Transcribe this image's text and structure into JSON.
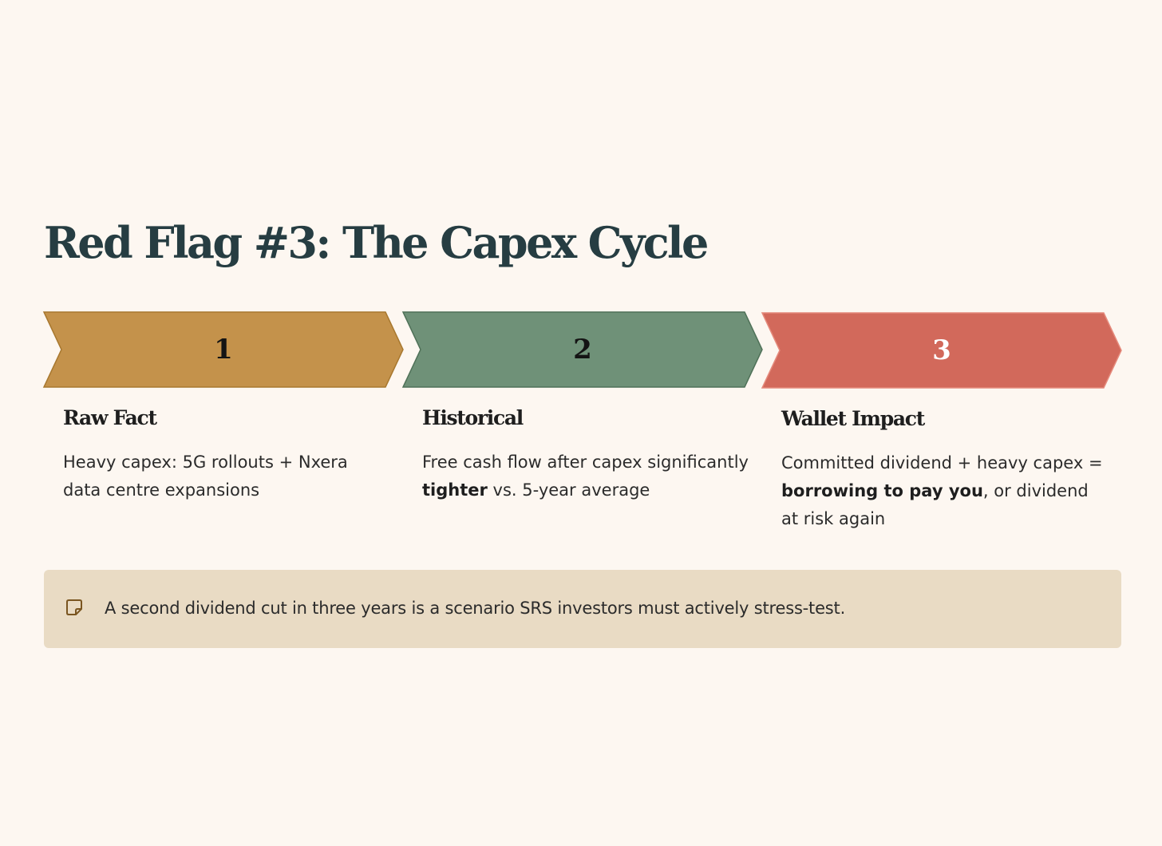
{
  "title": "Red Flag #3: The Capex Cycle",
  "colors": {
    "background": "#fdf7f1",
    "step1": "#c4924b",
    "step2": "#6f9178",
    "step3": "#d2695b",
    "callout_bg": "#e9dbc4",
    "title": "#263d42"
  },
  "steps": [
    {
      "number": "1",
      "heading": "Raw Fact",
      "text_parts": [
        "Heavy capex: 5G rollouts + Nxera data centre expansions"
      ]
    },
    {
      "number": "2",
      "heading": "Historical",
      "text_parts": [
        "Free cash flow after capex significantly ",
        "tighter",
        " vs. 5-year average"
      ]
    },
    {
      "number": "3",
      "heading": "Wallet Impact",
      "text_parts": [
        "Committed dividend + heavy capex = ",
        "borrowing to pay you",
        ", or dividend at risk again"
      ]
    }
  ],
  "callout": {
    "icon": "sticky-note-icon",
    "text": "A second dividend cut in three years is a scenario SRS investors must actively stress-test."
  }
}
